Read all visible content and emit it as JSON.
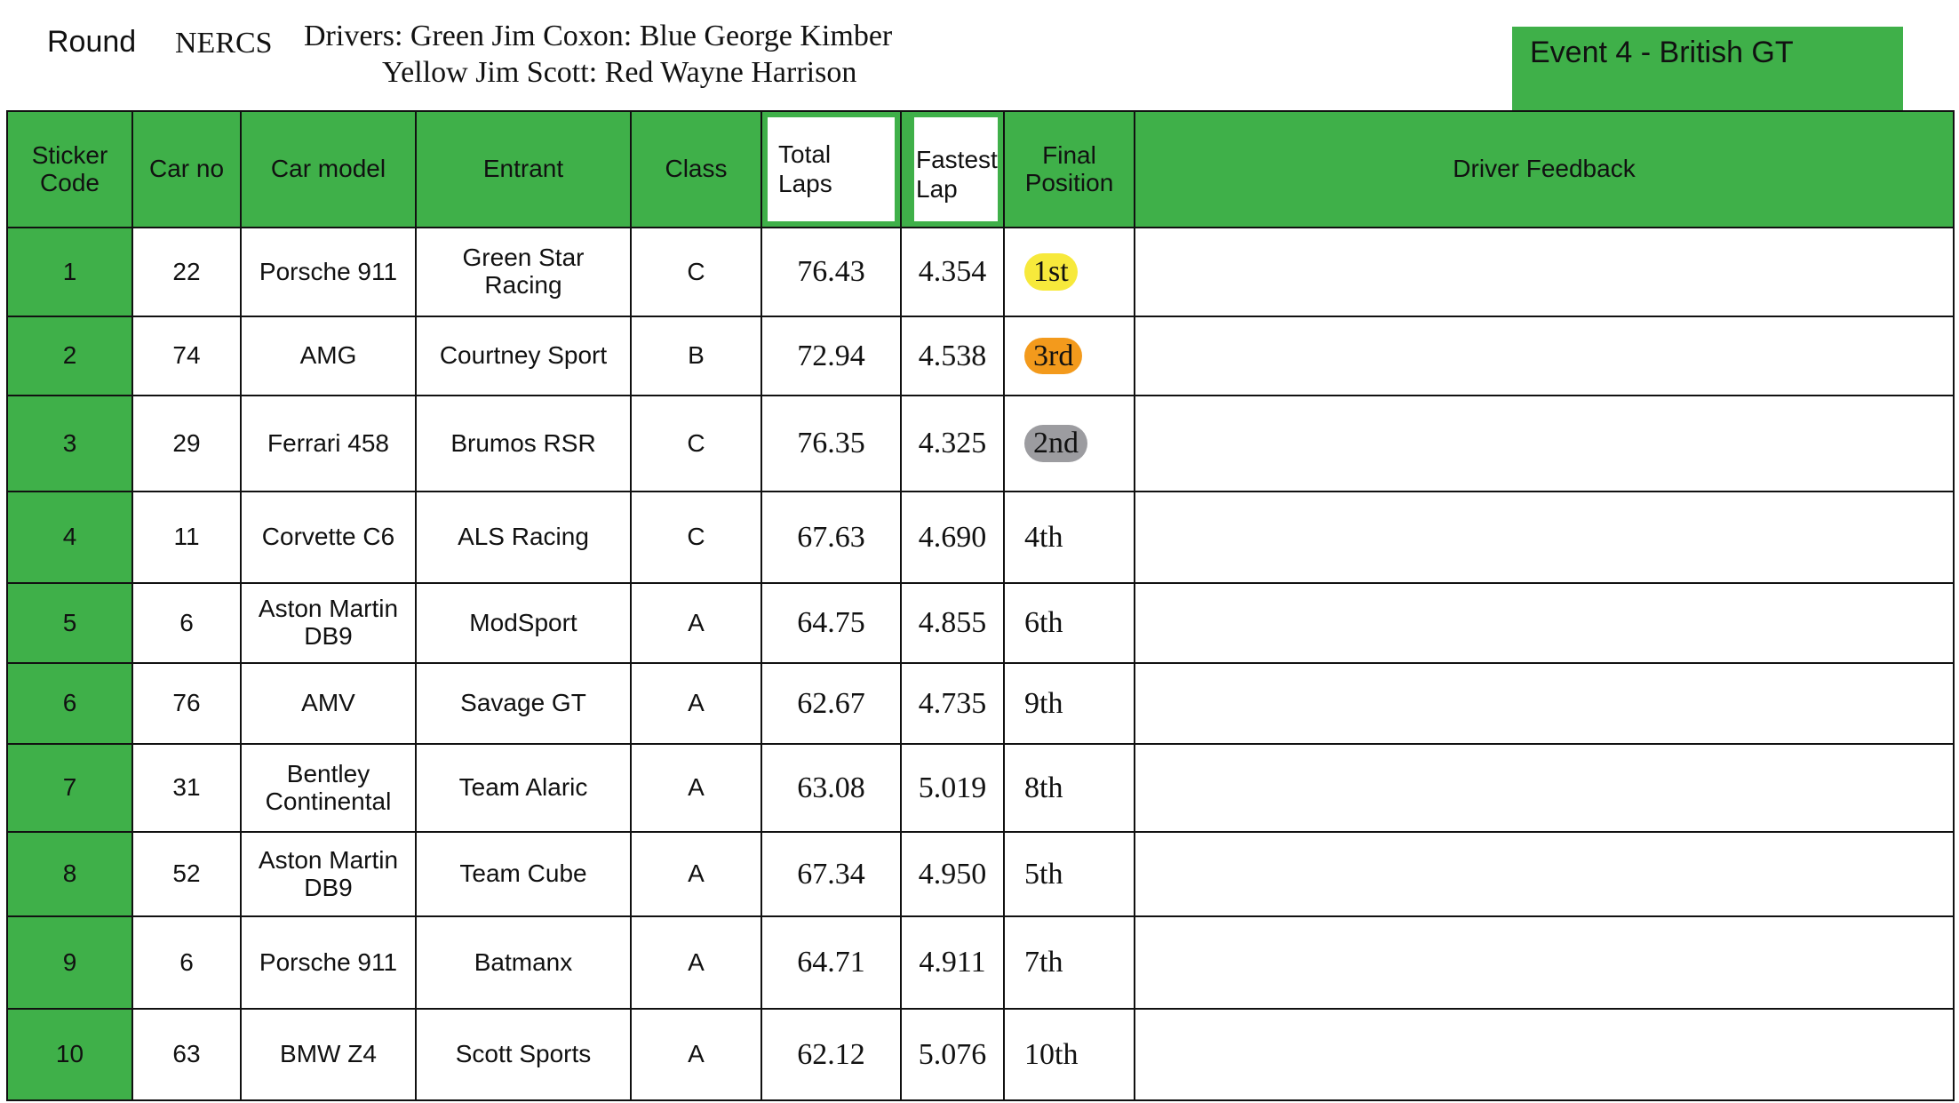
{
  "header": {
    "round_label": "Round",
    "series": "NERCS",
    "drivers_line1": "Drivers: Green Jim Coxon: Blue George Kimber",
    "drivers_line2": "Yellow Jim Scott: Red Wayne Harrison",
    "event": "Event 4   - British GT"
  },
  "table": {
    "columns": [
      "Sticker Code",
      "Car no",
      "Car model",
      "Entrant",
      "Class",
      "Total Laps",
      "Fastest Lap",
      "Final Position",
      "Driver Feedback"
    ],
    "rows": [
      [
        "1",
        "22",
        "Porsche 911",
        "Green Star Racing",
        "C",
        "76.43",
        "4.354",
        "1st",
        ""
      ],
      [
        "2",
        "74",
        "AMG",
        "Courtney Sport",
        "B",
        "72.94",
        "4.538",
        "3rd",
        ""
      ],
      [
        "3",
        "29",
        "Ferrari 458",
        "Brumos RSR",
        "C",
        "76.35",
        "4.325",
        "2nd",
        ""
      ],
      [
        "4",
        "11",
        "Corvette C6",
        "ALS Racing",
        "C",
        "67.63",
        "4.690",
        "4th",
        ""
      ],
      [
        "5",
        "6",
        "Aston Martin DB9",
        "ModSport",
        "A",
        "64.75",
        "4.855",
        "6th",
        ""
      ],
      [
        "6",
        "76",
        "AMV",
        "Savage GT",
        "A",
        "62.67",
        "4.735",
        "9th",
        ""
      ],
      [
        "7",
        "31",
        "Bentley Continental",
        "Team Alaric",
        "A",
        "63.08",
        "5.019",
        "8th",
        ""
      ],
      [
        "8",
        "52",
        "Aston Martin DB9",
        "Team Cube",
        "A",
        "67.34",
        "4.950",
        "5th",
        ""
      ],
      [
        "9",
        "6",
        "Porsche 911",
        "Batmanx",
        "A",
        "64.71",
        "4.911",
        "7th",
        ""
      ],
      [
        "10",
        "63",
        "BMW Z4",
        "Scott Sports",
        "A",
        "62.12",
        "5.076",
        "10th",
        ""
      ]
    ],
    "position_colors": [
      "#f7e93b",
      "#f39a1c",
      "#9c9ca0",
      null,
      null,
      null,
      null,
      null,
      null,
      null
    ]
  }
}
